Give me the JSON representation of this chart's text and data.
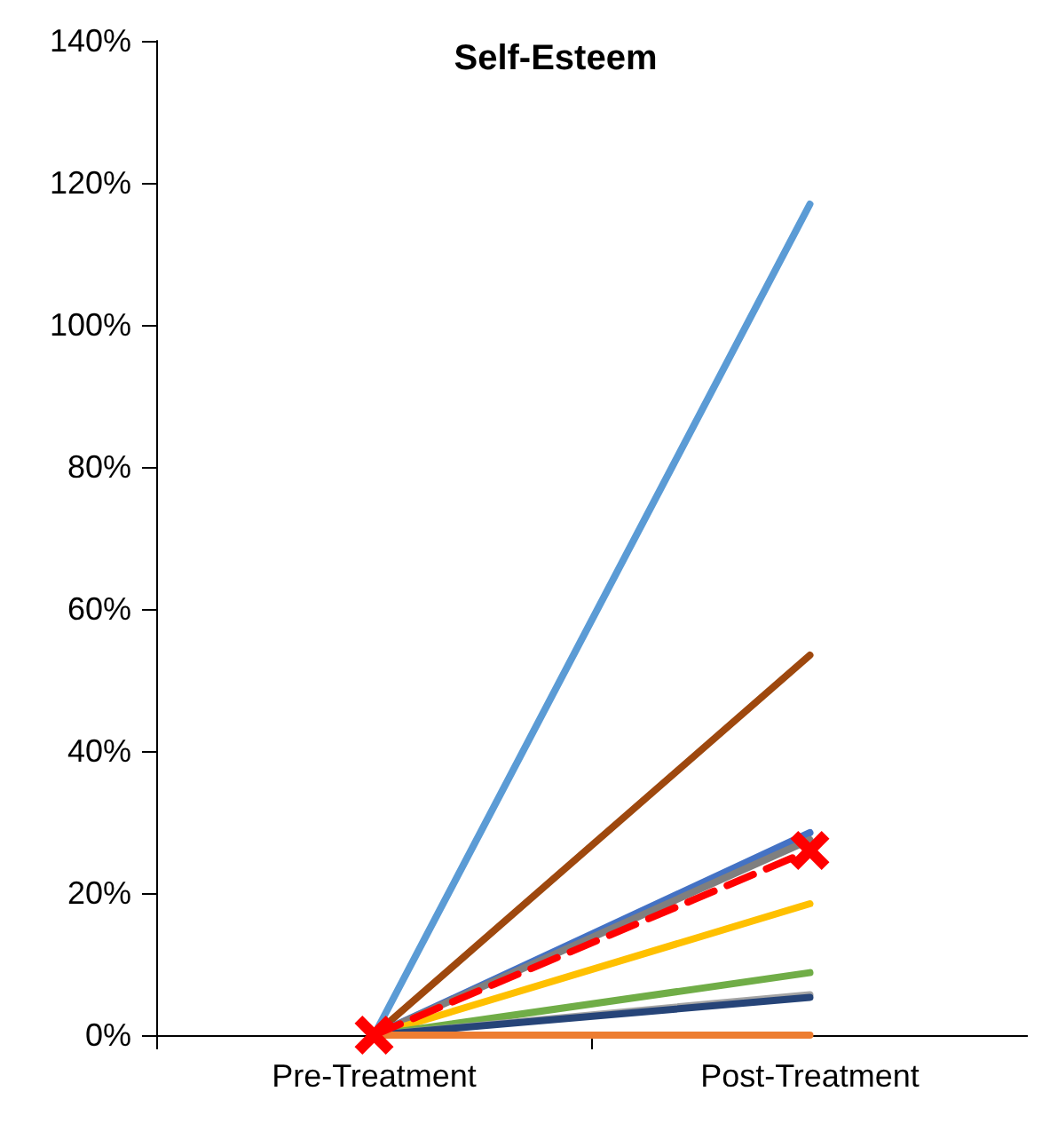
{
  "chart_data": {
    "type": "line",
    "title": "Self-Esteem",
    "categories": [
      "Pre-Treatment",
      "Post-Treatment"
    ],
    "series": [
      {
        "color": "#5b9bd5",
        "values": [
          0,
          117
        ]
      },
      {
        "color": "#9e480e",
        "values": [
          0,
          53.5
        ]
      },
      {
        "color": "#4472c4",
        "values": [
          0,
          28.5
        ]
      },
      {
        "color": "#7f7f7f",
        "values": [
          0,
          27.5
        ]
      },
      {
        "color": "#ffc000",
        "values": [
          0,
          18.5
        ]
      },
      {
        "color": "#70ad47",
        "values": [
          0,
          8.8
        ]
      },
      {
        "color": "#a5a5a5",
        "values": [
          0,
          5.7
        ]
      },
      {
        "color": "#264478",
        "values": [
          0,
          5.3
        ]
      },
      {
        "color": "#ed7d31",
        "values": [
          0,
          0
        ]
      },
      {
        "color": "#ff0000",
        "values": [
          0,
          26
        ],
        "marker": "cross",
        "line_style": "dashed"
      }
    ],
    "ylim": [
      0,
      140
    ],
    "yticks": [
      {
        "value": 0,
        "label": "0%"
      },
      {
        "value": 20,
        "label": "20%"
      },
      {
        "value": 40,
        "label": "40%"
      },
      {
        "value": 60,
        "label": "60%"
      },
      {
        "value": 80,
        "label": "80%"
      },
      {
        "value": 100,
        "label": "100%"
      },
      {
        "value": 120,
        "label": "120%"
      },
      {
        "value": 140,
        "label": "140%"
      }
    ],
    "grid": false,
    "marker": "none",
    "line_style": "solid"
  }
}
